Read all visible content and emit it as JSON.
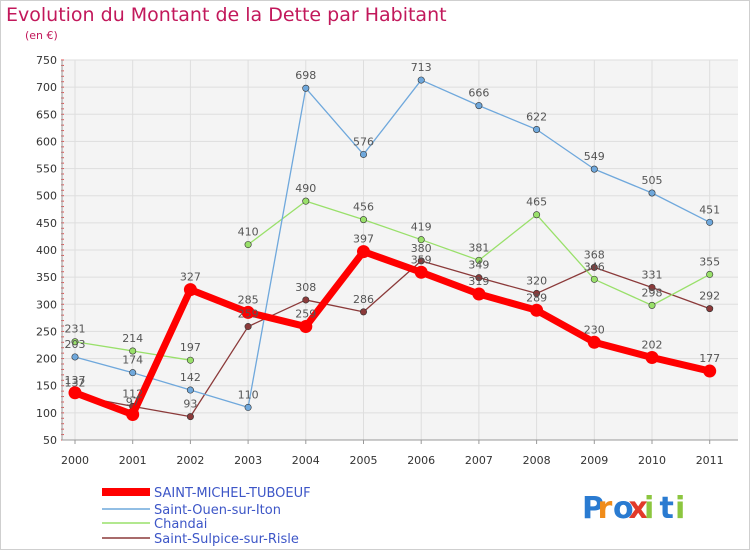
{
  "title": "Evolution du Montant de la Dette par Habitant",
  "unit": "(en €)",
  "brand": {
    "letters": [
      "P",
      "r",
      "o",
      "x",
      "i",
      "t",
      "i"
    ],
    "colors": [
      "#2a7bd1",
      "#f08c1a",
      "#2a7bd1",
      "#e23a2a",
      "#8cc63f",
      "#2a7bd1",
      "#8cc63f"
    ]
  },
  "chart_data": {
    "type": "line",
    "x": [
      "2000",
      "2001",
      "2002",
      "2003",
      "2004",
      "2005",
      "2006",
      "2007",
      "2008",
      "2009",
      "2010",
      "2011"
    ],
    "ylim": [
      50,
      750
    ],
    "yticks": [
      50,
      100,
      150,
      200,
      250,
      300,
      350,
      400,
      450,
      500,
      550,
      600,
      650,
      700,
      750
    ],
    "grid": true,
    "legend_position": "bottom-left",
    "series": [
      {
        "name": "SAINT-MICHEL-TUBOEUF",
        "color": "#ff0000",
        "values": [
          137,
          97,
          327,
          285,
          259,
          397,
          359,
          319,
          289,
          230,
          202,
          177
        ],
        "labels": [
          "137",
          "97",
          "327",
          "285",
          "259",
          "397",
          "359",
          "319",
          "289",
          "230",
          "202",
          "177"
        ]
      },
      {
        "name": "Saint-Ouen-sur-Iton",
        "color": "#6fa8dc",
        "values": [
          203,
          174,
          142,
          110,
          698,
          576,
          713,
          666,
          622,
          549,
          505,
          451
        ],
        "labels": [
          "203",
          "174",
          "142",
          "110",
          "698",
          "576",
          "713",
          "666",
          "622",
          "549",
          "505",
          "451"
        ]
      },
      {
        "name": "Chandai",
        "color": "#99e06a",
        "values": [
          231,
          214,
          197,
          410,
          490,
          456,
          419,
          381,
          465,
          346,
          298,
          355
        ],
        "labels": [
          "231",
          "214",
          "197",
          "410",
          "490",
          "456",
          "419",
          "381",
          "465",
          "346",
          "298",
          "355"
        ]
      },
      {
        "name": "Saint-Sulpice-sur-Risle",
        "color": "#8b3a3a",
        "values": [
          132,
          112,
          93,
          259,
          308,
          286,
          380,
          349,
          320,
          368,
          331,
          292
        ],
        "labels": [
          "132",
          "112",
          "93",
          "259",
          "308",
          "286",
          "380",
          "349",
          "320",
          "368",
          "331",
          "292"
        ]
      }
    ]
  }
}
